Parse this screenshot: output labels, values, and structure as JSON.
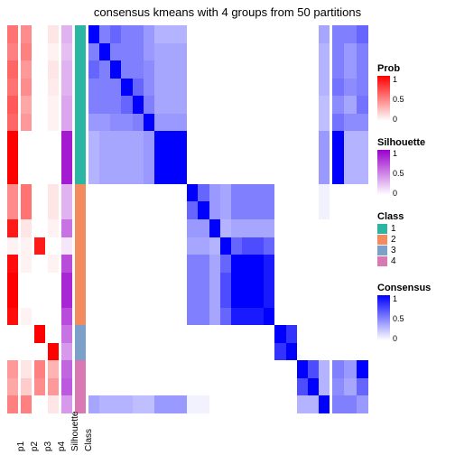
{
  "title": "consensus kmeans with 4 groups from 50 partitions",
  "background_color": "#ffffff",
  "title_fontsize": 13,
  "annotation_columns": [
    {
      "id": "p1",
      "width": 12,
      "scale": "prob",
      "values": [
        0.55,
        0.5,
        0.6,
        0.55,
        0.65,
        0.6,
        1,
        1,
        1,
        0.45,
        0.45,
        0.9,
        0.05,
        0.95,
        1,
        1,
        0.95,
        0,
        0,
        0.4,
        0.35,
        0.5
      ]
    },
    {
      "id": "p2",
      "width": 12,
      "scale": "prob",
      "values": [
        0.45,
        0.5,
        0.4,
        0.45,
        0.35,
        0.4,
        0,
        0,
        0,
        0.55,
        0.55,
        0.1,
        0.05,
        0.05,
        0,
        0,
        0.05,
        0,
        0,
        0.1,
        0.2,
        0.5
      ]
    },
    {
      "id": "p3",
      "width": 12,
      "scale": "prob",
      "values": [
        0,
        0,
        0,
        0,
        0,
        0,
        0,
        0,
        0,
        0,
        0,
        0,
        0.9,
        0,
        0,
        0,
        0,
        1,
        0,
        0.5,
        0.45,
        0
      ]
    },
    {
      "id": "p4",
      "width": 12,
      "scale": "prob",
      "values": [
        0.1,
        0.05,
        0.1,
        0.08,
        0.05,
        0.05,
        0,
        0,
        0,
        0.1,
        0.1,
        0.05,
        0,
        0.05,
        0,
        0,
        0,
        0,
        1,
        0.3,
        0.4,
        0.1
      ]
    },
    {
      "id": "Silhouette",
      "width": 12,
      "scale": "silhouette",
      "values": [
        0.3,
        0.25,
        0.3,
        0.3,
        0.35,
        0.35,
        0.9,
        0.9,
        0.9,
        0.3,
        0.3,
        0.55,
        0.1,
        0.7,
        0.85,
        0.85,
        0.7,
        0.55,
        0.4,
        0.6,
        0.65,
        0.4
      ]
    },
    {
      "id": "Class",
      "width": 12,
      "scale": "class",
      "values": [
        1,
        1,
        1,
        1,
        1,
        1,
        1,
        1,
        1,
        2,
        2,
        2,
        2,
        2,
        2,
        2,
        2,
        3,
        3,
        4,
        4,
        4
      ]
    }
  ],
  "scales": {
    "prob": {
      "type": "gradient",
      "low": "#ffffff",
      "high": "#ff0000",
      "min": 0,
      "max": 1,
      "ticks": [
        1,
        0.5,
        0
      ]
    },
    "silhouette": {
      "type": "gradient",
      "low": "#ffffff",
      "high": "#9900cc",
      "min": 0,
      "max": 1,
      "ticks": [
        1,
        0.5,
        0
      ]
    },
    "consensus": {
      "type": "gradient",
      "low": "#ffffff",
      "high": "#0000ff",
      "min": 0,
      "max": 1,
      "ticks": [
        1,
        0.5,
        0
      ]
    },
    "class": {
      "type": "categorical",
      "levels": [
        {
          "label": "1",
          "color": "#2bb6a3"
        },
        {
          "label": "2",
          "color": "#f48b5f"
        },
        {
          "label": "3",
          "color": "#7ba0c9"
        },
        {
          "label": "4",
          "color": "#d979b3"
        }
      ]
    }
  },
  "consensus_blocks": [
    {
      "start": 0,
      "end": 8,
      "pattern": [
        [
          1,
          0.5,
          0.6,
          0.5,
          0.5,
          0.4,
          0.3,
          0.3,
          0.3
        ],
        [
          0.5,
          1,
          0.5,
          0.5,
          0.5,
          0.4,
          0.35,
          0.35,
          0.35
        ],
        [
          0.6,
          0.5,
          1,
          0.5,
          0.5,
          0.45,
          0.35,
          0.35,
          0.35
        ],
        [
          0.5,
          0.5,
          0.5,
          1,
          0.6,
          0.45,
          0.35,
          0.35,
          0.35
        ],
        [
          0.5,
          0.5,
          0.5,
          0.6,
          1,
          0.5,
          0.35,
          0.35,
          0.35
        ],
        [
          0.4,
          0.4,
          0.45,
          0.45,
          0.5,
          1,
          0.4,
          0.4,
          0.4
        ],
        [
          0.3,
          0.35,
          0.35,
          0.35,
          0.35,
          0.4,
          1,
          1,
          1
        ],
        [
          0.3,
          0.35,
          0.35,
          0.35,
          0.35,
          0.4,
          1,
          1,
          1
        ],
        [
          0.3,
          0.35,
          0.35,
          0.35,
          0.35,
          0.4,
          1,
          1,
          1
        ]
      ]
    },
    {
      "start": 9,
      "end": 16,
      "pattern": [
        [
          1,
          0.6,
          0.4,
          0.35,
          0.5,
          0.5,
          0.5,
          0.5
        ],
        [
          0.6,
          1,
          0.4,
          0.35,
          0.5,
          0.5,
          0.5,
          0.5
        ],
        [
          0.4,
          0.4,
          1,
          0.3,
          0.35,
          0.35,
          0.35,
          0.35
        ],
        [
          0.35,
          0.35,
          0.3,
          1,
          0.6,
          0.7,
          0.7,
          0.6
        ],
        [
          0.5,
          0.5,
          0.35,
          0.6,
          1,
          1,
          1,
          0.9
        ],
        [
          0.5,
          0.5,
          0.35,
          0.7,
          1,
          1,
          1,
          0.9
        ],
        [
          0.5,
          0.5,
          0.35,
          0.7,
          1,
          1,
          1,
          0.9
        ],
        [
          0.5,
          0.5,
          0.35,
          0.6,
          0.9,
          0.9,
          0.9,
          1
        ]
      ]
    },
    {
      "start": 17,
      "end": 18,
      "pattern": [
        [
          1,
          0.8
        ],
        [
          0.8,
          1
        ]
      ]
    },
    {
      "start": 19,
      "end": 21,
      "pattern": [
        [
          1,
          0.7,
          0.3
        ],
        [
          0.7,
          1,
          0.3
        ],
        [
          0.3,
          0.3,
          1
        ]
      ]
    }
  ],
  "mini_pattern": [
    [
      0.5,
      0.5,
      0.6
    ],
    [
      0.5,
      0.4,
      0.5
    ],
    [
      0.5,
      0.4,
      0.5
    ],
    [
      0.55,
      0.45,
      0.5
    ],
    [
      0.45,
      0.35,
      0.55
    ],
    [
      0.55,
      0.45,
      0.45
    ],
    [
      1,
      0.3,
      0.3
    ],
    [
      1,
      0.3,
      0.3
    ],
    [
      1,
      0.3,
      0.3
    ],
    [
      0,
      0,
      0
    ],
    [
      0,
      0,
      0
    ],
    [
      0,
      0,
      0
    ],
    [
      0,
      0,
      0
    ],
    [
      0,
      0,
      0
    ],
    [
      0,
      0,
      0
    ],
    [
      0,
      0,
      0
    ],
    [
      0,
      0,
      0
    ],
    [
      0,
      0,
      0
    ],
    [
      0,
      0,
      0
    ],
    [
      0.5,
      0.4,
      1
    ],
    [
      0.45,
      0.35,
      0.6
    ],
    [
      0.5,
      0.5,
      0.4
    ]
  ],
  "cross_row": {
    "row": 21,
    "vals": [
      0.35,
      0.3,
      0.3,
      0.3,
      0.25,
      0.25,
      0.4,
      0.4,
      0.4,
      0.05,
      0.05,
      0,
      0,
      0,
      0,
      0,
      0,
      0,
      0,
      0,
      0,
      0
    ]
  },
  "n": 22,
  "legends": [
    {
      "title": "Prob",
      "scale": "prob"
    },
    {
      "title": "Silhouette",
      "scale": "silhouette"
    },
    {
      "title": "Class",
      "scale": "class"
    },
    {
      "title": "Consensus",
      "scale": "consensus"
    }
  ]
}
